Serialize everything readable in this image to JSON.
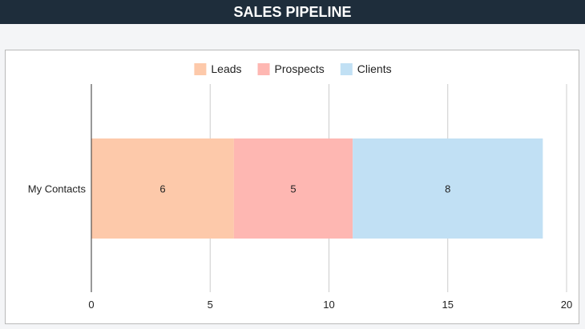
{
  "header": {
    "title": "SALES PIPELINE"
  },
  "chart_data": {
    "type": "bar",
    "orientation": "horizontal",
    "stacked": true,
    "categories": [
      "My Contacts"
    ],
    "series": [
      {
        "name": "Leads",
        "values": [
          6
        ],
        "color": "#fdc9aa"
      },
      {
        "name": "Prospects",
        "values": [
          5
        ],
        "color": "#feb7b2"
      },
      {
        "name": "Clients",
        "values": [
          8
        ],
        "color": "#c1e0f4"
      }
    ],
    "xlim": [
      0,
      20
    ],
    "xticks": [
      0,
      5,
      10,
      15,
      20
    ],
    "grid": true,
    "legend_position": "top",
    "data_labels": true
  }
}
